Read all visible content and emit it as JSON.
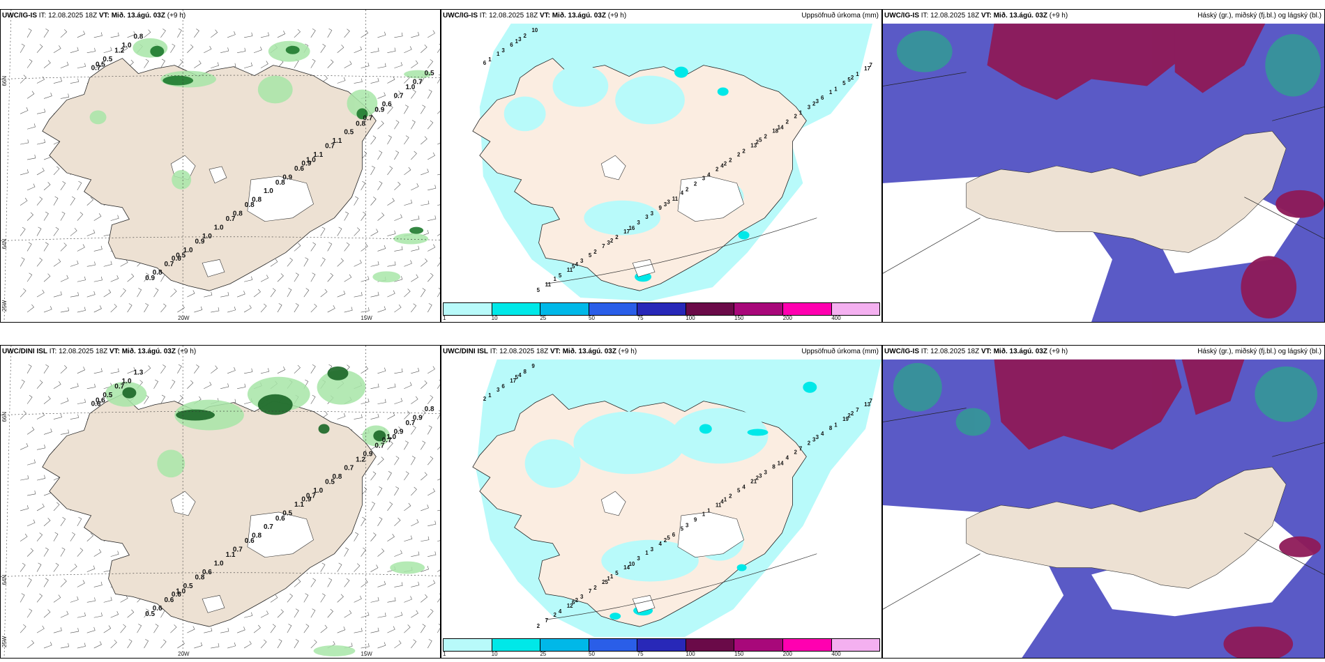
{
  "panels": [
    {
      "model": "UWC/IG-IS",
      "rest": " IT: 12.08.2025 18Z ",
      "vt": "VT: Mið. 13.ágú. 03Z",
      "lead": " (+9 h)",
      "right": ""
    },
    {
      "model": "UWC/IG-IS",
      "rest": " IT: 12.08.2025 18Z ",
      "vt": "VT: Mið. 13.ágú. 03Z",
      "lead": " (+9 h)",
      "right": "Uppsöfnuð úrkoma (mm)"
    },
    {
      "model": "UWC/IG-IS",
      "rest": " IT: 12.08.2025 18Z ",
      "vt": "VT: Mið. 13.ágú. 03Z",
      "lead": " (+9 h)",
      "right": "Háský (gr.), miðský (fj.bl.) og lágský (bl.)"
    },
    {
      "model": "UWC/DINI ISL",
      "rest": " IT: 12.08.2025 18Z ",
      "vt": "VT: Mið. 13.ágú. 03Z",
      "lead": " (+9 h)",
      "right": ""
    },
    {
      "model": "UWC/DINI ISL",
      "rest": " IT: 12.08.2025 18Z ",
      "vt": "VT: Mið. 13.ágú. 03Z",
      "lead": " (+9 h)",
      "right": "Uppsöfnuð úrkoma (mm)"
    },
    {
      "model": "UWC/IG-IS",
      "rest": " IT: 12.08.2025 18Z ",
      "vt": "VT: Mið. 13.ágú. 03Z",
      "lead": " (+9 h)",
      "right": "Háský (gr.), miðský (fj.bl.) og lágský (bl.)"
    }
  ],
  "axes": {
    "lat66": "66N",
    "lat64": "64N",
    "lon25": "25W",
    "lon20": "20W",
    "lon15": "15W"
  },
  "colorbar": {
    "ticks": [
      "1",
      "10",
      "25",
      "50",
      "75",
      "100",
      "150",
      "200",
      "400"
    ],
    "colors": [
      "#b8fafa",
      "#00e8e8",
      "#00b8e8",
      "#2a5ee8",
      "#2828b8",
      "#6a0a48",
      "#a8087a",
      "#ff00b0",
      "#f4b0f0"
    ]
  },
  "gust_top": [
    "0.7",
    "0.9",
    "0.6",
    "0.6",
    "0.8",
    "1.0",
    "1.1",
    "1.0",
    "0.7",
    "0.9",
    "0.8",
    "0.7",
    "0.8",
    "0.5",
    "1.1",
    "1.0",
    "0.7",
    "1.0",
    "0.8",
    "0.5",
    "1.0",
    "0.5",
    "0.6",
    "0.7",
    "0.9",
    "0.8",
    "1.2",
    "0.7",
    "0.9",
    "1.0",
    "0.8",
    "0.9",
    "0.8",
    "0.7",
    "0.5",
    "1.0",
    "0.5"
  ],
  "gust_bot": [
    "0.6",
    "0.9",
    "0.6",
    "0.7",
    "0.8",
    "1.0",
    "0.8",
    "0.6",
    "0.9",
    "0.5",
    "0.6",
    "0.9",
    "0.7",
    "0.5",
    "1.0",
    "0.5",
    "0.9",
    "0.7",
    "1.3",
    "0.7",
    "1.0",
    "0.8",
    "1.1",
    "0.6",
    "0.7",
    "0.6",
    "0.7",
    "0.5",
    "0.8",
    "0.7",
    "0.6",
    "0.5",
    "1.2",
    "1.1",
    "0.6",
    "0.7",
    "1.0",
    "1.0"
  ],
  "precip_top": [
    "6",
    "2",
    "4",
    "3",
    "3",
    "3",
    "5",
    "2",
    "2",
    "3",
    "1",
    "2",
    "3",
    "1",
    "2",
    "5",
    "1",
    "4",
    "10",
    "18",
    "17",
    "17",
    "2",
    "11",
    "3",
    "9",
    "6",
    "13",
    "7",
    "5",
    "2",
    "11",
    "2",
    "3",
    "1",
    "2",
    "3",
    "6",
    "11",
    "2",
    "2",
    "2",
    "1",
    "4",
    "5",
    "1",
    "3",
    "3",
    "2",
    "2",
    "1",
    "2",
    "5",
    "14",
    "16",
    "7",
    "4",
    "5",
    "2",
    "3",
    "1",
    "2",
    "3",
    "5"
  ],
  "precip_bot": [
    "2",
    "1",
    "2",
    "3",
    "5",
    "4",
    "3",
    "1",
    "2",
    "1",
    "2",
    "2",
    "1",
    "3",
    "5",
    "7",
    "8",
    "5",
    "9",
    "8",
    "14",
    "13",
    "11",
    "12",
    "2",
    "4",
    "17",
    "21",
    "25",
    "19",
    "9",
    "7",
    "4",
    "3",
    "1",
    "2",
    "3",
    "4",
    "6",
    "8",
    "3",
    "5",
    "7",
    "1",
    "4",
    "7",
    "3",
    "6",
    "4",
    "2",
    "1",
    "3",
    "2",
    "14",
    "10",
    "7",
    "4",
    "6",
    "3",
    "2",
    "5",
    "2",
    "1",
    "2"
  ]
}
